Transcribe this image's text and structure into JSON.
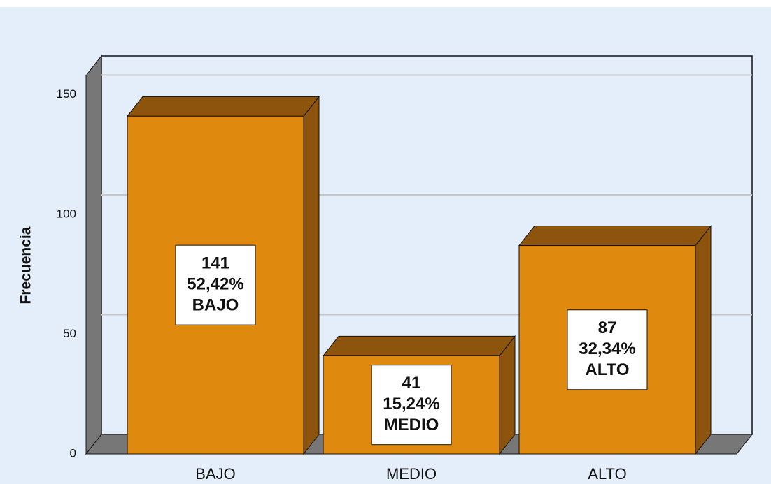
{
  "chart_data": {
    "type": "bar3d",
    "y_label": "Frecuencia",
    "categories": [
      "BAJO",
      "MEDIO",
      "ALTO"
    ],
    "values": [
      141,
      41,
      87
    ],
    "percentages": [
      52.42,
      15.24,
      32.34
    ],
    "percentage_labels": [
      "52,42%",
      "15,24%",
      "32,34%"
    ],
    "color": "#e0890f",
    "ylim": [
      0,
      158
    ],
    "yticks": [
      0,
      50,
      100,
      150
    ],
    "grid": true
  }
}
